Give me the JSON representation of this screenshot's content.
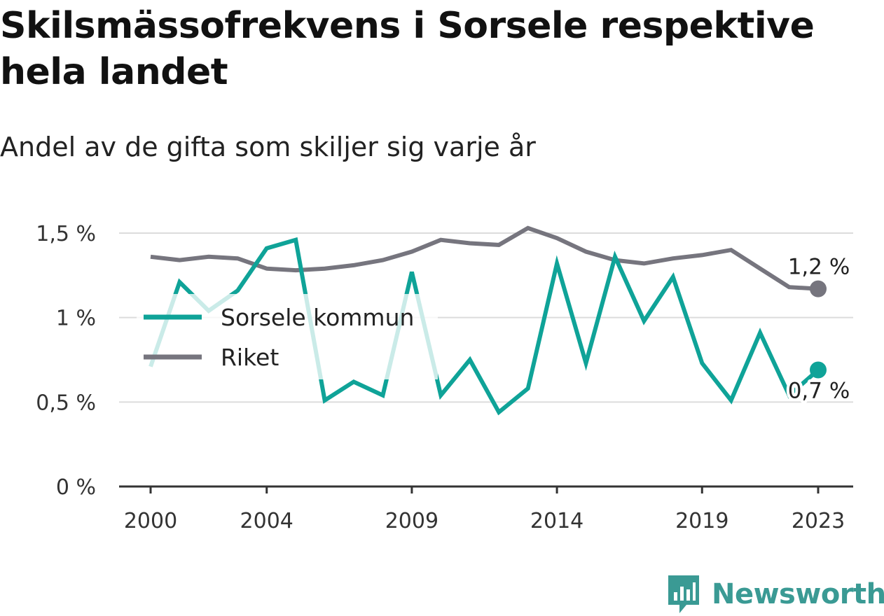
{
  "title": "Skilsmässofrekvens i Sorsele respektive hela landet",
  "subtitle": "Andel av de gifta som skiljer sig varje år",
  "brand": "Newsworthy",
  "chart_data": {
    "type": "line",
    "x": [
      2000,
      2001,
      2002,
      2003,
      2004,
      2005,
      2006,
      2007,
      2008,
      2009,
      2010,
      2011,
      2012,
      2013,
      2014,
      2015,
      2016,
      2017,
      2018,
      2019,
      2020,
      2021,
      2022,
      2023
    ],
    "x_ticks": [
      2000,
      2004,
      2009,
      2014,
      2019,
      2023
    ],
    "x_tick_labels": [
      "2000",
      "2004",
      "2009",
      "2014",
      "2019",
      "2023"
    ],
    "y_ticks": [
      0,
      0.5,
      1,
      1.5
    ],
    "y_tick_labels": [
      "0 %",
      "0,5 %",
      "1 %",
      "1,5 %"
    ],
    "ylim": [
      0,
      1.5
    ],
    "grid": true,
    "legend_position": "left-middle",
    "series": [
      {
        "name": "Sorsele kommun",
        "color": "#0fa398",
        "values": [
          0.71,
          1.21,
          1.04,
          1.16,
          1.41,
          1.46,
          0.51,
          0.62,
          0.54,
          1.27,
          0.54,
          0.75,
          0.44,
          0.58,
          1.32,
          0.73,
          1.36,
          0.98,
          1.24,
          0.73,
          0.51,
          0.91,
          0.54,
          0.69
        ],
        "end_label": "0,7 %"
      },
      {
        "name": "Riket",
        "color": "#76757e",
        "values": [
          1.36,
          1.34,
          1.36,
          1.35,
          1.29,
          1.28,
          1.29,
          1.31,
          1.34,
          1.39,
          1.46,
          1.44,
          1.43,
          1.53,
          1.47,
          1.39,
          1.34,
          1.32,
          1.35,
          1.37,
          1.4,
          1.29,
          1.18,
          1.17
        ],
        "end_label": "1,2 %"
      }
    ]
  }
}
